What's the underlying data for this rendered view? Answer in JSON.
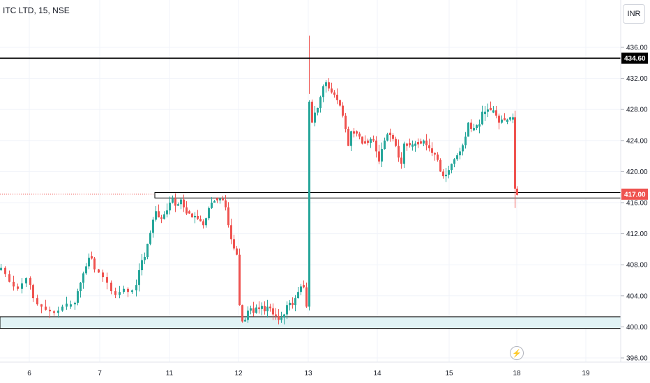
{
  "header": {
    "title": "ITC LTD, 15, NSE"
  },
  "currency_button": {
    "label": "INR"
  },
  "alert_icon": "lightning-bolt-icon",
  "colors": {
    "up": "#26a69a",
    "down": "#ef5350",
    "zone_fill": "#e1f3f5",
    "line": "#000000",
    "price_badge": "#ef5350"
  },
  "chart_data": {
    "type": "candlestick",
    "title": "ITC LTD, 15, NSE",
    "currency": "INR",
    "y_axis": {
      "min": 396,
      "max": 437.5,
      "ticks": [
        "436.00",
        "432.00",
        "428.00",
        "424.00",
        "420.00",
        "416.00",
        "412.00",
        "408.00",
        "404.00",
        "400.00",
        "396.00"
      ]
    },
    "x_axis": {
      "ticks": [
        "6",
        "7",
        "11",
        "12",
        "13",
        "14",
        "15",
        "18",
        "19"
      ]
    },
    "horizontal_lines": [
      {
        "price": 434.6,
        "label": "434.60"
      }
    ],
    "zones": [
      {
        "from": 416.6,
        "to": 417.3
      },
      {
        "from": 399.8,
        "to": 401.3
      }
    ],
    "last_price": {
      "value": 417.0,
      "label": "417.00"
    },
    "path": [
      [
        0,
        407.6
      ],
      [
        6,
        406.8
      ],
      [
        12,
        405.8
      ],
      [
        18,
        405.2
      ],
      [
        24,
        404.9
      ],
      [
        30,
        405.6
      ],
      [
        36,
        406.3
      ],
      [
        42,
        405.4
      ],
      [
        46,
        403.7
      ],
      [
        52,
        402.9
      ],
      [
        58,
        402.6
      ],
      [
        64,
        402.2
      ],
      [
        70,
        402.0
      ],
      [
        76,
        401.8
      ],
      [
        82,
        402.1
      ],
      [
        88,
        402.6
      ],
      [
        94,
        403.0
      ],
      [
        100,
        402.9
      ],
      [
        106,
        403.1
      ],
      [
        110,
        404.6
      ],
      [
        114,
        405.7
      ],
      [
        118,
        406.9
      ],
      [
        122,
        407.8
      ],
      [
        126,
        408.9
      ],
      [
        130,
        408.8
      ],
      [
        134,
        407.4
      ],
      [
        140,
        407.0
      ],
      [
        146,
        406.4
      ],
      [
        152,
        405.7
      ],
      [
        158,
        404.6
      ],
      [
        164,
        404.1
      ],
      [
        170,
        404.5
      ],
      [
        176,
        404.9
      ],
      [
        182,
        404.5
      ],
      [
        188,
        404.7
      ],
      [
        194,
        405.4
      ],
      [
        198,
        407.3
      ],
      [
        202,
        408.6
      ],
      [
        206,
        409.0
      ],
      [
        210,
        410.7
      ],
      [
        214,
        412.1
      ],
      [
        218,
        413.8
      ],
      [
        222,
        414.9
      ],
      [
        226,
        414.1
      ],
      [
        230,
        413.9
      ],
      [
        234,
        414.5
      ],
      [
        238,
        415.0
      ],
      [
        242,
        416.0
      ],
      [
        246,
        416.5
      ],
      [
        250,
        415.6
      ],
      [
        254,
        415.8
      ],
      [
        258,
        416.4
      ],
      [
        262,
        415.4
      ],
      [
        266,
        414.6
      ],
      [
        270,
        414.6
      ],
      [
        274,
        414.1
      ],
      [
        278,
        414.3
      ],
      [
        282,
        413.9
      ],
      [
        286,
        413.6
      ],
      [
        290,
        413.1
      ],
      [
        294,
        414.0
      ],
      [
        298,
        415.3
      ],
      [
        302,
        416.0
      ],
      [
        306,
        416.2
      ],
      [
        310,
        416.3
      ],
      [
        314,
        416.5
      ],
      [
        318,
        416.3
      ],
      [
        322,
        415.4
      ],
      [
        326,
        413.1
      ],
      [
        330,
        411.3
      ],
      [
        334,
        410.1
      ],
      [
        338,
        409.3
      ],
      [
        342,
        402.8
      ],
      [
        346,
        400.7
      ],
      [
        350,
        400.9
      ],
      [
        354,
        402.1
      ],
      [
        358,
        402.4
      ],
      [
        362,
        401.8
      ],
      [
        366,
        402.5
      ],
      [
        370,
        402.3
      ],
      [
        374,
        402.7
      ],
      [
        378,
        402.0
      ],
      [
        382,
        402.6
      ],
      [
        386,
        402.4
      ],
      [
        390,
        401.6
      ],
      [
        394,
        401.4
      ],
      [
        398,
        400.9
      ],
      [
        402,
        401.2
      ],
      [
        406,
        401.6
      ],
      [
        410,
        402.8
      ],
      [
        414,
        403.1
      ],
      [
        418,
        402.8
      ],
      [
        422,
        403.7
      ],
      [
        426,
        404.5
      ],
      [
        430,
        405.2
      ],
      [
        434,
        405.1
      ],
      [
        438,
        402.6
      ],
      [
        442,
        429.0
      ],
      [
        446,
        426.3
      ],
      [
        450,
        427.6
      ],
      [
        454,
        428.2
      ],
      [
        458,
        429.6
      ],
      [
        462,
        431.0
      ],
      [
        466,
        431.5
      ],
      [
        470,
        430.7
      ],
      [
        474,
        430.2
      ],
      [
        478,
        429.9
      ],
      [
        482,
        429.2
      ],
      [
        486,
        428.5
      ],
      [
        490,
        427.2
      ],
      [
        494,
        425.5
      ],
      [
        498,
        423.3
      ],
      [
        502,
        425.2
      ],
      [
        506,
        424.9
      ],
      [
        510,
        424.9
      ],
      [
        514,
        424.5
      ],
      [
        518,
        423.6
      ],
      [
        522,
        423.6
      ],
      [
        526,
        423.7
      ],
      [
        530,
        424.2
      ],
      [
        534,
        424.0
      ],
      [
        538,
        422.6
      ],
      [
        542,
        421.3
      ],
      [
        546,
        422.9
      ],
      [
        550,
        424.0
      ],
      [
        554,
        424.8
      ],
      [
        558,
        424.7
      ],
      [
        562,
        424.2
      ],
      [
        566,
        423.3
      ],
      [
        570,
        421.8
      ],
      [
        574,
        421.0
      ],
      [
        578,
        423.6
      ],
      [
        582,
        423.3
      ],
      [
        586,
        423.4
      ],
      [
        590,
        423.5
      ],
      [
        594,
        423.6
      ],
      [
        598,
        423.5
      ],
      [
        602,
        423.6
      ],
      [
        606,
        424.0
      ],
      [
        610,
        423.4
      ],
      [
        614,
        423.0
      ],
      [
        618,
        422.4
      ],
      [
        622,
        422.2
      ],
      [
        626,
        421.5
      ],
      [
        630,
        420.0
      ],
      [
        634,
        419.4
      ],
      [
        638,
        419.6
      ],
      [
        642,
        420.2
      ],
      [
        646,
        421.0
      ],
      [
        650,
        421.6
      ],
      [
        654,
        422.1
      ],
      [
        658,
        422.6
      ],
      [
        662,
        423.4
      ],
      [
        666,
        424.5
      ],
      [
        670,
        426.3
      ],
      [
        674,
        425.5
      ],
      [
        678,
        425.6
      ],
      [
        682,
        426.0
      ],
      [
        686,
        426.1
      ],
      [
        690,
        427.7
      ],
      [
        694,
        427.7
      ],
      [
        698,
        428.0
      ],
      [
        702,
        427.9
      ],
      [
        706,
        427.9
      ],
      [
        710,
        427.2
      ],
      [
        714,
        426.3
      ],
      [
        718,
        426.7
      ],
      [
        722,
        426.6
      ],
      [
        726,
        426.7
      ],
      [
        730,
        427.0
      ],
      [
        734,
        427.0
      ],
      [
        737,
        417.8
      ],
      [
        740,
        417.0
      ]
    ]
  }
}
